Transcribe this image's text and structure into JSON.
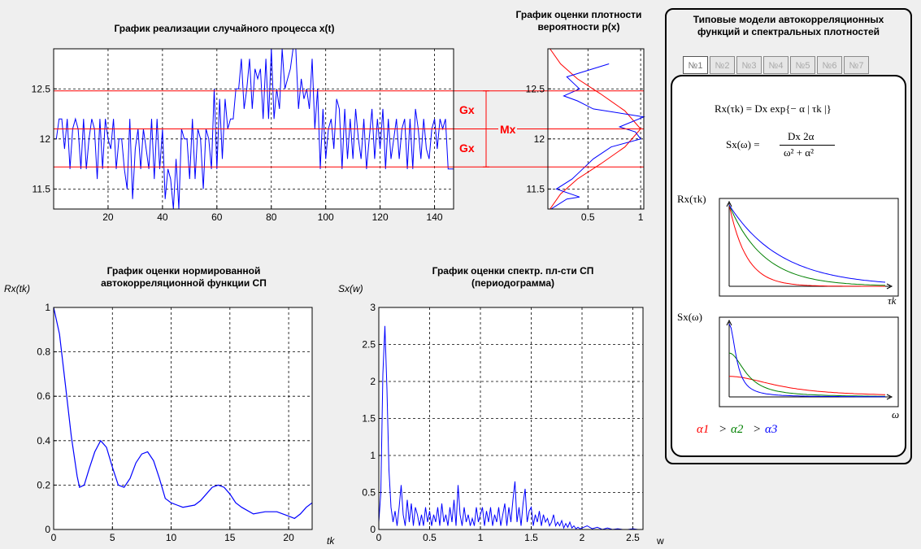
{
  "titles": {
    "realization": "График реализации случайного процесса x(t)",
    "density_l1": "График оценки плотности",
    "density_l2": "вероятности p(x)",
    "acf_l1": "График оценки нормированной",
    "acf_l2": "автокорреляционной функции СП",
    "psd_l1": "График оценки спектр. пл-сти СП",
    "psd_l2": "(периодограмма)"
  },
  "labels": {
    "acf_y": "Rx(tk)",
    "acf_x": "tk",
    "psd_y": "Sx(w)",
    "psd_x": "w",
    "gx_top": "Gx",
    "gx_bottom": "Gx",
    "mx": "Mx"
  },
  "panel": {
    "title_l1": "Типовые модели автокорреляционных",
    "title_l2": "функций и спектральных плотностей",
    "tabs": [
      "№1",
      "№2",
      "№3",
      "№4",
      "№5",
      "№6",
      "№7"
    ],
    "formula_r": "Rx(τk) = Dx exp{− α | τk |}",
    "formula_s_left": "Sx(ω) =",
    "formula_s_num": "Dx 2α",
    "formula_s_den": "ω² + α²",
    "r_axis_label": "Rx(τk)",
    "r_x_label": "τk",
    "s_axis_label": "Sx(ω)",
    "s_x_label": "ω",
    "alpha1": "α1",
    "alpha2": "α2",
    "alpha3": "α3",
    "gt": ">"
  },
  "colors": {
    "red": "#ff0000",
    "green": "#008000",
    "blue": "#0000ff",
    "grid": "#000000"
  },
  "chart_data": [
    {
      "type": "line",
      "title": "График реализации случайного процесса x(t)",
      "xlim": [
        0,
        147
      ],
      "ylim": [
        11.3,
        12.9
      ],
      "xticks": [
        20,
        40,
        60,
        80,
        100,
        120,
        140
      ],
      "yticks": [
        11.5,
        12,
        12.5
      ],
      "hlines": {
        "mean": 12.1,
        "upper": 12.48,
        "lower": 11.72
      },
      "series": [
        {
          "values": [
            12.0,
            12.2,
            12.2,
            11.9,
            12.2,
            11.7,
            12.1,
            12.2,
            12.1,
            11.7,
            12.2,
            11.7,
            12.0,
            12.2,
            12.1,
            11.6,
            12.2,
            11.7,
            12.2,
            12.0,
            11.9,
            12.2,
            11.7,
            12.0,
            12.0,
            11.7,
            11.5,
            12.2,
            11.4,
            11.9,
            12.1,
            11.7,
            12.1,
            11.9,
            11.7,
            12.2,
            11.6,
            12.2,
            11.7,
            12.1,
            11.4,
            11.7,
            11.6,
            11.3,
            11.8,
            11.3,
            12.1,
            12.0,
            12.0,
            11.6,
            12.2,
            11.6,
            12.1,
            12.0,
            11.5,
            12.1,
            12.0,
            11.7,
            12.5,
            11.7,
            12.4,
            11.8,
            12.4,
            12.1,
            12.2,
            12.2,
            12.5,
            12.5,
            12.8,
            12.3,
            12.5,
            12.8,
            12.3,
            12.7,
            12.6,
            12.7,
            12.2,
            12.8,
            12.2,
            12.9,
            12.2,
            12.5,
            12.3,
            12.9,
            12.5,
            12.6,
            12.7,
            12.9,
            12.9,
            12.3,
            12.6,
            12.4,
            12.5,
            12.3,
            12.8,
            12.1,
            12.5,
            11.7,
            12.3,
            11.8,
            12.1,
            12.2,
            11.9,
            12.4,
            12.3,
            11.7,
            12.3,
            11.8,
            12.2,
            11.8,
            12.3,
            12.0,
            11.8,
            12.2,
            11.7,
            12.0,
            12.3,
            11.8,
            12.2,
            11.9,
            12.3,
            11.7,
            12.2,
            11.8,
            12.0,
            12.2,
            11.8,
            12.1,
            12.2,
            11.7,
            12.2,
            11.7,
            12.3,
            12.1,
            11.8,
            12.2,
            11.9,
            11.8,
            12.1,
            12.2,
            11.9,
            12.2,
            12.1,
            12.2,
            11.7,
            11.7,
            11.7
          ]
        }
      ]
    },
    {
      "type": "line",
      "title": "График оценки плотности вероятности p(x)",
      "xlim": [
        0.12,
        1.03
      ],
      "ylim": [
        11.3,
        12.9
      ],
      "xticks": [
        0.5,
        1
      ],
      "yticks": [
        11.5,
        12,
        12.5
      ],
      "series": [
        {
          "name": "hist",
          "x": [
            0.7,
            0.3,
            0.42,
            0.27,
            0.4,
            0.55,
            1.03,
            0.8,
            0.95,
            1.0,
            0.72,
            0.55,
            0.45,
            0.35,
            0.2,
            0.42,
            0.3,
            0.15
          ],
          "y": [
            12.75,
            12.62,
            12.5,
            12.43,
            12.38,
            12.3,
            12.22,
            12.12,
            12.07,
            12.0,
            11.92,
            11.8,
            11.7,
            11.6,
            11.5,
            11.42,
            11.4,
            11.3
          ]
        },
        {
          "name": "norm",
          "x": [
            0.14,
            0.24,
            0.4,
            0.62,
            0.85,
            1.0,
            0.85,
            0.62,
            0.4,
            0.24,
            0.14
          ],
          "y": [
            12.9,
            12.75,
            12.6,
            12.45,
            12.28,
            12.1,
            11.92,
            11.75,
            11.6,
            11.45,
            11.3
          ]
        }
      ]
    },
    {
      "type": "line",
      "title": "График оценки нормированной автокорреляционной функции СП",
      "xlabel": "tk",
      "ylabel": "Rx(tk)",
      "xlim": [
        0,
        22
      ],
      "ylim": [
        0,
        1
      ],
      "xticks": [
        0,
        5,
        10,
        15,
        20
      ],
      "yticks": [
        0,
        0.2,
        0.4,
        0.6,
        0.8,
        1
      ],
      "series": [
        {
          "x": [
            0,
            0.5,
            1,
            1.5,
            2,
            2.2,
            2.6,
            3,
            3.5,
            4,
            4.5,
            5,
            5.5,
            6,
            6.5,
            7,
            7.5,
            8,
            8.5,
            9,
            9.5,
            10,
            10.5,
            11,
            12,
            12.5,
            13,
            13.5,
            14,
            14.5,
            15,
            15.5,
            16,
            17,
            18,
            19,
            20,
            20.5,
            21,
            21.5,
            22
          ],
          "y": [
            1.0,
            0.88,
            0.65,
            0.42,
            0.24,
            0.19,
            0.2,
            0.27,
            0.35,
            0.4,
            0.37,
            0.28,
            0.2,
            0.19,
            0.23,
            0.3,
            0.34,
            0.35,
            0.31,
            0.23,
            0.14,
            0.12,
            0.11,
            0.1,
            0.11,
            0.13,
            0.16,
            0.19,
            0.2,
            0.19,
            0.16,
            0.12,
            0.1,
            0.07,
            0.08,
            0.08,
            0.06,
            0.05,
            0.07,
            0.1,
            0.12
          ]
        }
      ]
    },
    {
      "type": "line",
      "title": "График оценки спектр. пл-сти СП (периодограмма)",
      "xlabel": "w",
      "ylabel": "Sx(w)",
      "xlim": [
        0,
        2.6
      ],
      "ylim": [
        0,
        3
      ],
      "xticks": [
        0,
        0.5,
        1,
        1.5,
        2,
        2.5
      ],
      "yticks": [
        0,
        0.5,
        1,
        1.5,
        2,
        2.5,
        3
      ],
      "series": [
        {
          "x": [
            0,
            0.02,
            0.04,
            0.06,
            0.08,
            0.1,
            0.12,
            0.14,
            0.16,
            0.18,
            0.2,
            0.22,
            0.24,
            0.26,
            0.28,
            0.3,
            0.32,
            0.34,
            0.36,
            0.38,
            0.4,
            0.42,
            0.44,
            0.46,
            0.48,
            0.5,
            0.52,
            0.54,
            0.56,
            0.58,
            0.6,
            0.62,
            0.64,
            0.66,
            0.68,
            0.7,
            0.72,
            0.74,
            0.76,
            0.78,
            0.8,
            0.82,
            0.84,
            0.86,
            0.88,
            0.9,
            0.92,
            0.94,
            0.96,
            0.98,
            1.0,
            1.02,
            1.04,
            1.06,
            1.08,
            1.1,
            1.12,
            1.14,
            1.16,
            1.18,
            1.2,
            1.22,
            1.24,
            1.26,
            1.28,
            1.3,
            1.32,
            1.34,
            1.36,
            1.38,
            1.4,
            1.42,
            1.44,
            1.46,
            1.48,
            1.5,
            1.52,
            1.54,
            1.56,
            1.58,
            1.6,
            1.62,
            1.64,
            1.66,
            1.68,
            1.7,
            1.72,
            1.74,
            1.76,
            1.78,
            1.8,
            1.82,
            1.84,
            1.86,
            1.88,
            1.9,
            1.92,
            1.94,
            1.96,
            1.98,
            2.0,
            2.05,
            2.1,
            2.15,
            2.2,
            2.25,
            2.3,
            2.35,
            2.4,
            2.45,
            2.5,
            2.55,
            2.6
          ],
          "y": [
            0.1,
            0.5,
            2.1,
            2.75,
            1.9,
            0.8,
            0.3,
            0.1,
            0.25,
            0.05,
            0.3,
            0.6,
            0.2,
            0.05,
            0.4,
            0.1,
            0.35,
            0.05,
            0.3,
            0.2,
            0.05,
            0.2,
            0.05,
            0.3,
            0.1,
            0.25,
            0.05,
            0.2,
            0.1,
            0.3,
            0.05,
            0.35,
            0.1,
            0.2,
            0.05,
            0.3,
            0.1,
            0.4,
            0.05,
            0.6,
            0.2,
            0.05,
            0.3,
            0.1,
            0.2,
            0.05,
            0.15,
            0.05,
            0.3,
            0.1,
            0.2,
            0.3,
            0.05,
            0.25,
            0.1,
            0.3,
            0.05,
            0.2,
            0.1,
            0.3,
            0.05,
            0.2,
            0.35,
            0.05,
            0.3,
            0.1,
            0.4,
            0.65,
            0.1,
            0.3,
            0.05,
            0.35,
            0.55,
            0.1,
            0.25,
            0.3,
            0.05,
            0.2,
            0.1,
            0.25,
            0.05,
            0.2,
            0.1,
            0.15,
            0.05,
            0.1,
            0.2,
            0.05,
            0.1,
            0.05,
            0.12,
            0.02,
            0.08,
            0.03,
            0.1,
            0.02,
            0.05,
            0.01,
            0.03,
            0.01,
            0.02,
            0.05,
            0.01,
            0.03,
            0.0,
            0.02,
            0.0,
            0.01,
            0.0,
            0.0,
            0.01,
            0.0,
            0.0
          ]
        }
      ]
    }
  ]
}
